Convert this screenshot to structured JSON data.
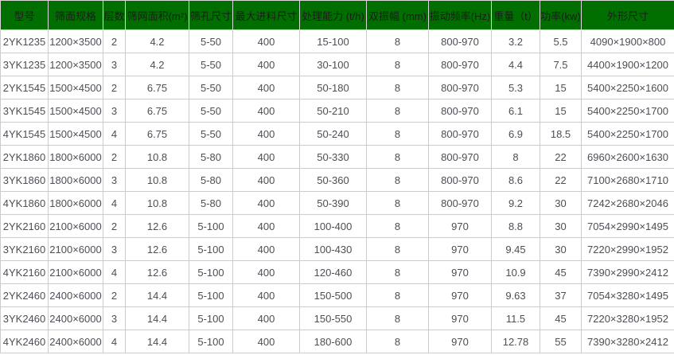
{
  "colors": {
    "header_bg": "#006f00",
    "header_text": "#1c1c1c",
    "cell_text": "#4d4e56",
    "border": "#cccccc"
  },
  "table": {
    "columns": [
      "型号",
      "筛面规格",
      "层数",
      "筛网面积(m²)",
      "筛孔尺寸",
      "最大进料尺寸",
      "处理能力 (t/h)",
      "双振幅 (mm)",
      "振动频率(Hz)",
      "重量（t）",
      "功率(kw)",
      "外形尺寸"
    ],
    "rows": [
      [
        "2YK1235",
        "1200×3500",
        "2",
        "4.2",
        "5-50",
        "400",
        "15-100",
        "8",
        "800-970",
        "3.2",
        "5.5",
        "4090×1900×800"
      ],
      [
        "3YK1235",
        "1200×3500",
        "3",
        "4.2",
        "5-50",
        "400",
        "30-100",
        "8",
        "800-970",
        "4.4",
        "7.5",
        "4400×1900×1200"
      ],
      [
        "2YK1545",
        "1500×4500",
        "2",
        "6.75",
        "5-50",
        "400",
        "50-180",
        "8",
        "800-970",
        "5.3",
        "15",
        "5400×2250×1600"
      ],
      [
        "3YK1545",
        "1500×4500",
        "3",
        "6.75",
        "5-50",
        "400",
        "50-210",
        "8",
        "800-970",
        "6.1",
        "15",
        "5400×2250×1700"
      ],
      [
        "4YK1545",
        "1500×4500",
        "4",
        "6.75",
        "5-50",
        "400",
        "50-240",
        "8",
        "800-970",
        "6.9",
        "18.5",
        "5400×2250×1700"
      ],
      [
        "2YK1860",
        "1800×6000",
        "2",
        "10.8",
        "5-80",
        "400",
        "50-330",
        "8",
        "800-970",
        "8",
        "22",
        "6960×2600×1630"
      ],
      [
        "3YK1860",
        "1800×6000",
        "3",
        "10.8",
        "5-80",
        "400",
        "50-360",
        "8",
        "800-970",
        "8.6",
        "22",
        "7100×2680×1710"
      ],
      [
        "4YK1860",
        "1800×6000",
        "4",
        "10.8",
        "5-80",
        "400",
        "50-390",
        "8",
        "800-970",
        "9.2",
        "30",
        "7242×2680×2046"
      ],
      [
        "2YK2160",
        "2100×6000",
        "2",
        "12.6",
        "5-100",
        "400",
        "100-400",
        "8",
        "970",
        "8.8",
        "30",
        "7054×2990×1495"
      ],
      [
        "3YK2160",
        "2100×6000",
        "3",
        "12.6",
        "5-100",
        "400",
        "100-430",
        "8",
        "970",
        "9.45",
        "30",
        "7220×2990×1952"
      ],
      [
        "4YK2160",
        "2100×6000",
        "4",
        "12.6",
        "5-100",
        "400",
        "120-460",
        "8",
        "970",
        "10.9",
        "45",
        "7390×2990×2412"
      ],
      [
        "2YK2460",
        "2400×6000",
        "2",
        "14.4",
        "5-100",
        "400",
        "150-500",
        "8",
        "970",
        "9.63",
        "37",
        "7054×3280×1495"
      ],
      [
        "3YK2460",
        "2400×6000",
        "3",
        "14.4",
        "5-100",
        "400",
        "150-550",
        "8",
        "970",
        "11.5",
        "45",
        "7220×3280×1952"
      ],
      [
        "4YK2460",
        "2400×6000",
        "4",
        "14.4",
        "5-100",
        "400",
        "180-600",
        "8",
        "970",
        "12.78",
        "55",
        "7390×3280×2412"
      ]
    ]
  }
}
